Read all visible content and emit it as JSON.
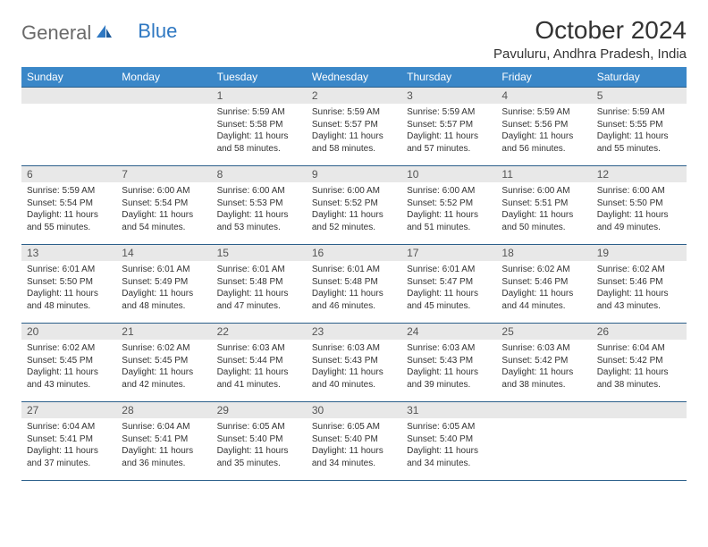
{
  "brand": {
    "part1": "General",
    "part2": "Blue"
  },
  "title": "October 2024",
  "location": "Pavuluru, Andhra Pradesh, India",
  "colors": {
    "header_bg": "#3a87c8",
    "header_text": "#ffffff",
    "daynum_bg": "#e8e8e8",
    "border": "#2b5f8a",
    "text": "#333333",
    "brand_gray": "#6a6a6a",
    "brand_blue": "#2f78c2"
  },
  "day_headers": [
    "Sunday",
    "Monday",
    "Tuesday",
    "Wednesday",
    "Thursday",
    "Friday",
    "Saturday"
  ],
  "weeks": [
    [
      {
        "n": "",
        "sr": "",
        "ss": "",
        "dl": ""
      },
      {
        "n": "",
        "sr": "",
        "ss": "",
        "dl": ""
      },
      {
        "n": "1",
        "sr": "Sunrise: 5:59 AM",
        "ss": "Sunset: 5:58 PM",
        "dl": "Daylight: 11 hours and 58 minutes."
      },
      {
        "n": "2",
        "sr": "Sunrise: 5:59 AM",
        "ss": "Sunset: 5:57 PM",
        "dl": "Daylight: 11 hours and 58 minutes."
      },
      {
        "n": "3",
        "sr": "Sunrise: 5:59 AM",
        "ss": "Sunset: 5:57 PM",
        "dl": "Daylight: 11 hours and 57 minutes."
      },
      {
        "n": "4",
        "sr": "Sunrise: 5:59 AM",
        "ss": "Sunset: 5:56 PM",
        "dl": "Daylight: 11 hours and 56 minutes."
      },
      {
        "n": "5",
        "sr": "Sunrise: 5:59 AM",
        "ss": "Sunset: 5:55 PM",
        "dl": "Daylight: 11 hours and 55 minutes."
      }
    ],
    [
      {
        "n": "6",
        "sr": "Sunrise: 5:59 AM",
        "ss": "Sunset: 5:54 PM",
        "dl": "Daylight: 11 hours and 55 minutes."
      },
      {
        "n": "7",
        "sr": "Sunrise: 6:00 AM",
        "ss": "Sunset: 5:54 PM",
        "dl": "Daylight: 11 hours and 54 minutes."
      },
      {
        "n": "8",
        "sr": "Sunrise: 6:00 AM",
        "ss": "Sunset: 5:53 PM",
        "dl": "Daylight: 11 hours and 53 minutes."
      },
      {
        "n": "9",
        "sr": "Sunrise: 6:00 AM",
        "ss": "Sunset: 5:52 PM",
        "dl": "Daylight: 11 hours and 52 minutes."
      },
      {
        "n": "10",
        "sr": "Sunrise: 6:00 AM",
        "ss": "Sunset: 5:52 PM",
        "dl": "Daylight: 11 hours and 51 minutes."
      },
      {
        "n": "11",
        "sr": "Sunrise: 6:00 AM",
        "ss": "Sunset: 5:51 PM",
        "dl": "Daylight: 11 hours and 50 minutes."
      },
      {
        "n": "12",
        "sr": "Sunrise: 6:00 AM",
        "ss": "Sunset: 5:50 PM",
        "dl": "Daylight: 11 hours and 49 minutes."
      }
    ],
    [
      {
        "n": "13",
        "sr": "Sunrise: 6:01 AM",
        "ss": "Sunset: 5:50 PM",
        "dl": "Daylight: 11 hours and 48 minutes."
      },
      {
        "n": "14",
        "sr": "Sunrise: 6:01 AM",
        "ss": "Sunset: 5:49 PM",
        "dl": "Daylight: 11 hours and 48 minutes."
      },
      {
        "n": "15",
        "sr": "Sunrise: 6:01 AM",
        "ss": "Sunset: 5:48 PM",
        "dl": "Daylight: 11 hours and 47 minutes."
      },
      {
        "n": "16",
        "sr": "Sunrise: 6:01 AM",
        "ss": "Sunset: 5:48 PM",
        "dl": "Daylight: 11 hours and 46 minutes."
      },
      {
        "n": "17",
        "sr": "Sunrise: 6:01 AM",
        "ss": "Sunset: 5:47 PM",
        "dl": "Daylight: 11 hours and 45 minutes."
      },
      {
        "n": "18",
        "sr": "Sunrise: 6:02 AM",
        "ss": "Sunset: 5:46 PM",
        "dl": "Daylight: 11 hours and 44 minutes."
      },
      {
        "n": "19",
        "sr": "Sunrise: 6:02 AM",
        "ss": "Sunset: 5:46 PM",
        "dl": "Daylight: 11 hours and 43 minutes."
      }
    ],
    [
      {
        "n": "20",
        "sr": "Sunrise: 6:02 AM",
        "ss": "Sunset: 5:45 PM",
        "dl": "Daylight: 11 hours and 43 minutes."
      },
      {
        "n": "21",
        "sr": "Sunrise: 6:02 AM",
        "ss": "Sunset: 5:45 PM",
        "dl": "Daylight: 11 hours and 42 minutes."
      },
      {
        "n": "22",
        "sr": "Sunrise: 6:03 AM",
        "ss": "Sunset: 5:44 PM",
        "dl": "Daylight: 11 hours and 41 minutes."
      },
      {
        "n": "23",
        "sr": "Sunrise: 6:03 AM",
        "ss": "Sunset: 5:43 PM",
        "dl": "Daylight: 11 hours and 40 minutes."
      },
      {
        "n": "24",
        "sr": "Sunrise: 6:03 AM",
        "ss": "Sunset: 5:43 PM",
        "dl": "Daylight: 11 hours and 39 minutes."
      },
      {
        "n": "25",
        "sr": "Sunrise: 6:03 AM",
        "ss": "Sunset: 5:42 PM",
        "dl": "Daylight: 11 hours and 38 minutes."
      },
      {
        "n": "26",
        "sr": "Sunrise: 6:04 AM",
        "ss": "Sunset: 5:42 PM",
        "dl": "Daylight: 11 hours and 38 minutes."
      }
    ],
    [
      {
        "n": "27",
        "sr": "Sunrise: 6:04 AM",
        "ss": "Sunset: 5:41 PM",
        "dl": "Daylight: 11 hours and 37 minutes."
      },
      {
        "n": "28",
        "sr": "Sunrise: 6:04 AM",
        "ss": "Sunset: 5:41 PM",
        "dl": "Daylight: 11 hours and 36 minutes."
      },
      {
        "n": "29",
        "sr": "Sunrise: 6:05 AM",
        "ss": "Sunset: 5:40 PM",
        "dl": "Daylight: 11 hours and 35 minutes."
      },
      {
        "n": "30",
        "sr": "Sunrise: 6:05 AM",
        "ss": "Sunset: 5:40 PM",
        "dl": "Daylight: 11 hours and 34 minutes."
      },
      {
        "n": "31",
        "sr": "Sunrise: 6:05 AM",
        "ss": "Sunset: 5:40 PM",
        "dl": "Daylight: 11 hours and 34 minutes."
      },
      {
        "n": "",
        "sr": "",
        "ss": "",
        "dl": ""
      },
      {
        "n": "",
        "sr": "",
        "ss": "",
        "dl": ""
      }
    ]
  ]
}
